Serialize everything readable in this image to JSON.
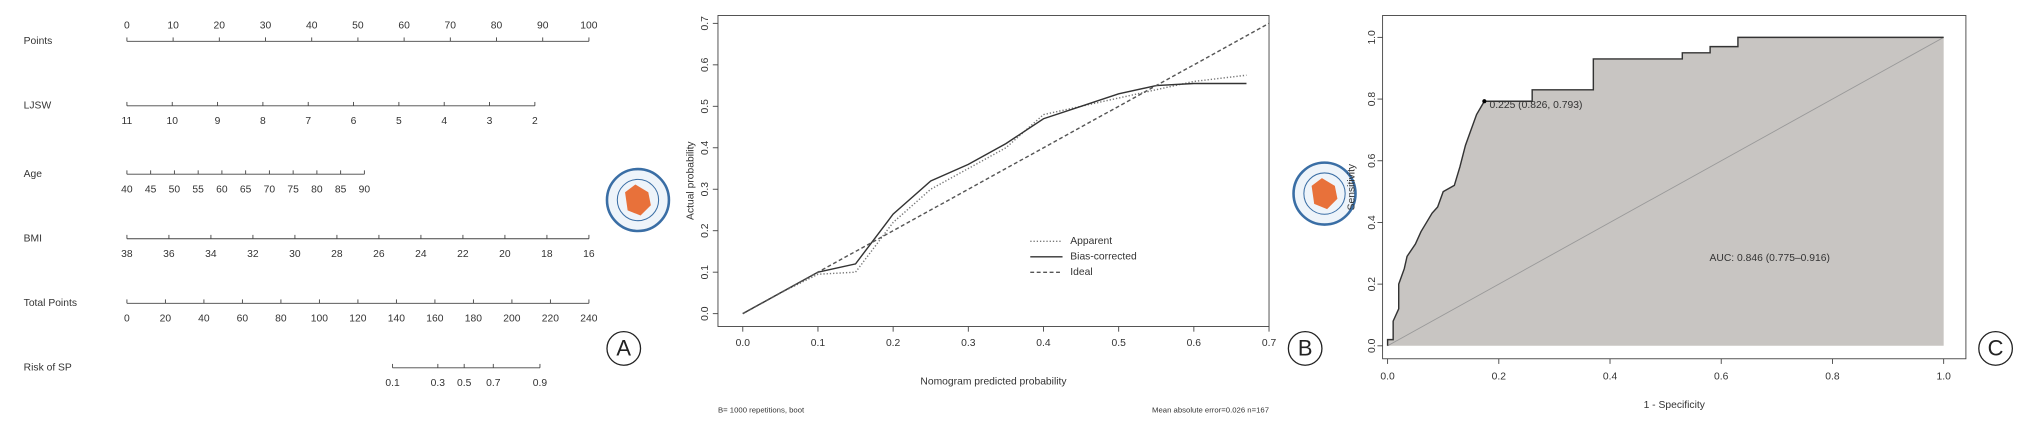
{
  "chart_data": [
    {
      "type": "nomogram",
      "panel": "A",
      "rows": [
        {
          "label": "Points",
          "ticks": [
            0,
            10,
            20,
            30,
            40,
            50,
            60,
            70,
            80,
            90,
            100
          ],
          "span": [
            0,
            100
          ]
        },
        {
          "label": "LJSW",
          "ticks": [
            11,
            10,
            9,
            8,
            7,
            6,
            5,
            4,
            3,
            2
          ],
          "span": [
            0,
            88.3
          ]
        },
        {
          "label": "Age",
          "ticks": [
            40,
            45,
            50,
            55,
            60,
            65,
            70,
            75,
            80,
            85,
            90
          ],
          "span": [
            0,
            51.4
          ]
        },
        {
          "label": "BMI",
          "ticks": [
            38,
            36,
            34,
            32,
            30,
            28,
            26,
            24,
            22,
            20,
            18,
            16
          ],
          "span": [
            0,
            100
          ]
        },
        {
          "label": "Total Points",
          "ticks": [
            0,
            20,
            40,
            60,
            80,
            100,
            120,
            140,
            160,
            180,
            200,
            220,
            240
          ],
          "span": [
            0,
            100
          ]
        },
        {
          "label": "Risk of SP",
          "ticks": [
            0.1,
            0.3,
            0.5,
            0.7,
            0.9
          ],
          "pos": [
            57.5,
            67.3,
            73,
            79.3,
            89.4
          ]
        }
      ]
    },
    {
      "type": "line",
      "panel": "B",
      "xlabel": "Nomogram predicted probability",
      "ylabel": "Actual probability",
      "xlim": [
        -0.033,
        0.7
      ],
      "ylim": [
        -0.031,
        0.719
      ],
      "xticks": [
        {
          "value": 0,
          "label": "0.0"
        },
        0.1,
        0.2,
        0.3,
        0.4,
        0.5,
        0.6,
        0.7
      ],
      "yticks": [
        {
          "value": 0,
          "label": "0.0"
        },
        0.1,
        0.2,
        0.3,
        0.4,
        0.5,
        0.6,
        0.7
      ],
      "series": [
        {
          "name": "Apparent",
          "color": "#777777",
          "dash": "1,1.5",
          "x": [
            0,
            0.05,
            0.1,
            0.15,
            0.2,
            0.25,
            0.3,
            0.35,
            0.4,
            0.45,
            0.5,
            0.55,
            0.6,
            0.67
          ],
          "values": [
            0,
            0.05,
            0.095,
            0.1,
            0.22,
            0.3,
            0.35,
            0.4,
            0.48,
            0.5,
            0.52,
            0.54,
            0.56,
            0.575
          ]
        },
        {
          "name": "Bias-corrected",
          "color": "#333333",
          "dash": "none",
          "x": [
            0,
            0.05,
            0.1,
            0.15,
            0.2,
            0.25,
            0.3,
            0.35,
            0.4,
            0.45,
            0.5,
            0.55,
            0.6,
            0.67
          ],
          "values": [
            0,
            0.05,
            0.1,
            0.12,
            0.24,
            0.32,
            0.36,
            0.41,
            0.47,
            0.5,
            0.53,
            0.55,
            0.555,
            0.555
          ]
        },
        {
          "name": "Ideal",
          "color": "#555555",
          "dash": "3,2",
          "x": [
            0,
            0.7
          ],
          "values": [
            0,
            0.7
          ]
        }
      ],
      "footnotes": [
        "B= 1000 repetitions, boot",
        "Mean absolute error=0.026 n=167"
      ]
    },
    {
      "type": "roc",
      "panel": "C",
      "xlabel": "1 - Specificity",
      "ylabel": "Sensitivity",
      "xlim": [
        -0.009,
        1.04
      ],
      "ylim": [
        -0.042,
        1.071
      ],
      "xticks": [
        {
          "value": 0,
          "label": "0.0"
        },
        0.2,
        0.4,
        0.6,
        0.8,
        {
          "value": 1,
          "label": "1.0"
        }
      ],
      "yticks": [
        {
          "value": 0,
          "label": "0.0"
        },
        0.2,
        0.4,
        0.6,
        0.8,
        {
          "value": 1,
          "label": "1.0"
        }
      ],
      "color": "#333333",
      "fill": "#c8c5c2",
      "x": [
        0,
        0,
        0.01,
        0.01,
        0.02,
        0.02,
        0.03,
        0.035,
        0.05,
        0.06,
        0.07,
        0.08,
        0.09,
        0.1,
        0.12,
        0.13,
        0.14,
        0.15,
        0.16,
        0.174,
        0.26,
        0.26,
        0.37,
        0.37,
        0.53,
        0.53,
        0.58,
        0.58,
        0.63,
        0.63,
        1
      ],
      "values": [
        0,
        0.02,
        0.02,
        0.08,
        0.12,
        0.2,
        0.25,
        0.29,
        0.33,
        0.37,
        0.4,
        0.43,
        0.45,
        0.5,
        0.52,
        0.58,
        0.65,
        0.7,
        0.75,
        0.793,
        0.793,
        0.83,
        0.83,
        0.93,
        0.93,
        0.95,
        0.95,
        0.97,
        0.97,
        1,
        1
      ],
      "annotation": {
        "text": "0.225 (0.826, 0.793)",
        "x": 0.174,
        "y": 0.793
      },
      "auc_text": "AUC: 0.846 (0.775–0.916)"
    }
  ]
}
